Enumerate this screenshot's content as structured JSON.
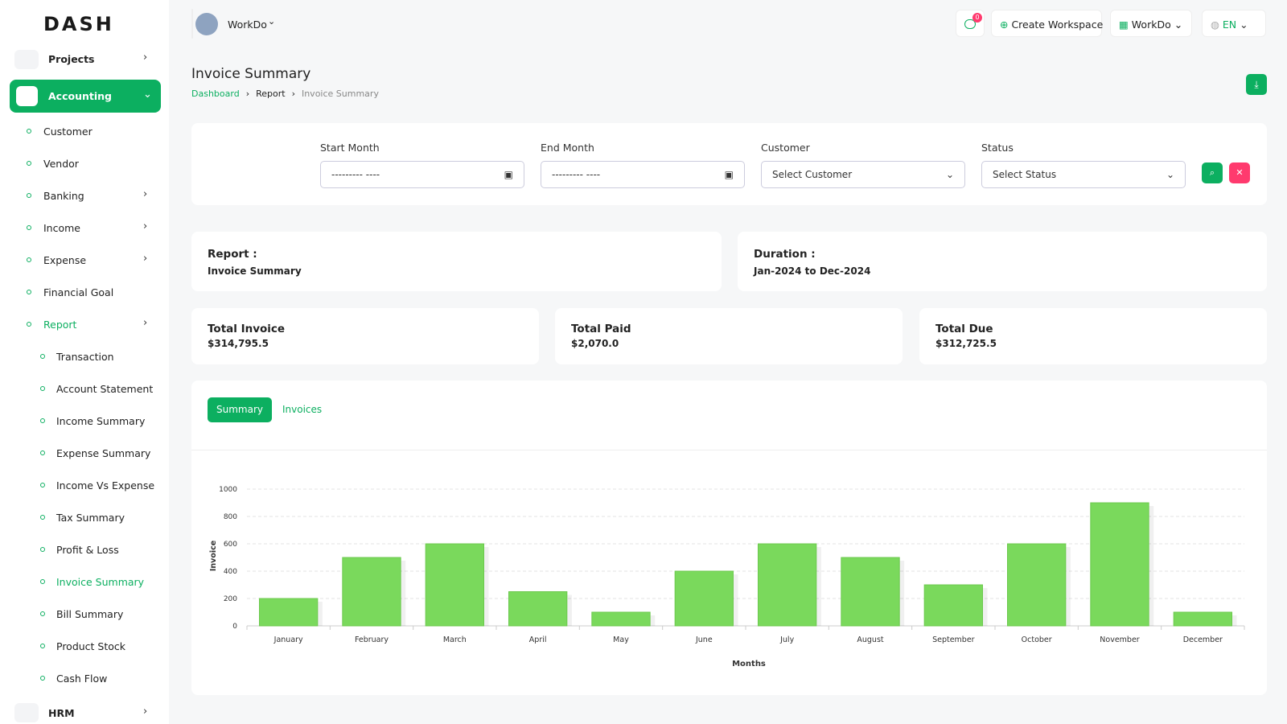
{
  "sidebar": {
    "logo": "DASH",
    "items": [
      "Projects",
      "Accounting",
      "Customer",
      "Vendor",
      "Banking",
      "Income",
      "Expense",
      "Financial Goal",
      "Report",
      "Transaction",
      "Account Statement",
      "Income Summary",
      "Expense Summary",
      "Income Vs Expense",
      "Tax Summary",
      "Profit & Loss",
      "Invoice Summary",
      "Bill Summary",
      "Product Stock",
      "Cash Flow",
      "HRM"
    ]
  },
  "header": {
    "workspace": "WorkDo",
    "notification_count": "0",
    "create_workspace": "Create Workspace",
    "workspace_menu": "WorkDo",
    "language": "EN"
  },
  "page": {
    "title": "Invoice Summary",
    "breadcrumb": [
      "Dashboard",
      "Report",
      "Invoice Summary"
    ]
  },
  "filters": {
    "start_month": {
      "label": "Start Month",
      "placeholder": "--------- ----"
    },
    "end_month": {
      "label": "End Month",
      "placeholder": "--------- ----"
    },
    "customer": {
      "label": "Customer",
      "placeholder": "Select Customer"
    },
    "status": {
      "label": "Status",
      "placeholder": "Select Status"
    }
  },
  "report_info": {
    "report_label": "Report :",
    "report_value": "Invoice Summary",
    "duration_label": "Duration :",
    "duration_value": "Jan-2024 to Dec-2024"
  },
  "stats": [
    {
      "label": "Total Invoice",
      "value": "$314,795.5"
    },
    {
      "label": "Total Paid",
      "value": "$2,070.0"
    },
    {
      "label": "Total Due",
      "value": "$312,725.5"
    }
  ],
  "tabs": [
    "Summary",
    "Invoices"
  ],
  "chart_data": {
    "type": "bar",
    "x_label": "Months",
    "y_label": "Invoice",
    "categories": [
      "January",
      "February",
      "March",
      "April",
      "May",
      "June",
      "July",
      "August",
      "September",
      "October",
      "November",
      "December"
    ],
    "values": [
      200,
      500,
      600,
      250,
      100,
      400,
      600,
      500,
      300,
      600,
      900,
      100
    ],
    "color": "#7ad95c",
    "ylim": [
      0,
      1000
    ],
    "yticks": [
      0,
      200,
      400,
      600,
      800,
      1000
    ],
    "grid": true
  }
}
